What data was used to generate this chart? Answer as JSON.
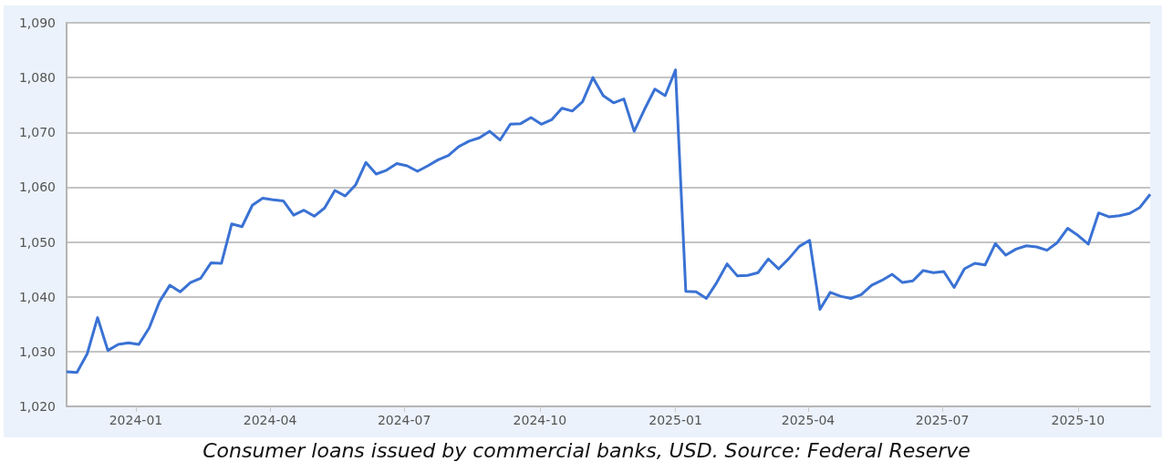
{
  "chart_data": {
    "type": "line",
    "x": [
      "2023-11-15",
      "2023-11-22",
      "2023-11-29",
      "2023-12-06",
      "2023-12-13",
      "2023-12-20",
      "2023-12-27",
      "2024-01-03",
      "2024-01-10",
      "2024-01-17",
      "2024-01-24",
      "2024-01-31",
      "2024-02-07",
      "2024-02-14",
      "2024-02-21",
      "2024-02-28",
      "2024-03-06",
      "2024-03-13",
      "2024-03-20",
      "2024-03-27",
      "2024-04-03",
      "2024-04-10",
      "2024-04-17",
      "2024-04-24",
      "2024-05-01",
      "2024-05-08",
      "2024-05-15",
      "2024-05-22",
      "2024-05-29",
      "2024-06-05",
      "2024-06-12",
      "2024-06-19",
      "2024-06-26",
      "2024-07-03",
      "2024-07-10",
      "2024-07-17",
      "2024-07-24",
      "2024-07-31",
      "2024-08-07",
      "2024-08-14",
      "2024-08-21",
      "2024-08-28",
      "2024-09-04",
      "2024-09-11",
      "2024-09-18",
      "2024-09-25",
      "2024-10-02",
      "2024-10-09",
      "2024-10-16",
      "2024-10-23",
      "2024-10-30",
      "2024-11-06",
      "2024-11-13",
      "2024-11-20",
      "2024-11-27",
      "2024-12-04",
      "2024-12-11",
      "2024-12-18",
      "2024-12-25",
      "2025-01-01",
      "2025-01-08",
      "2025-01-15",
      "2025-01-22",
      "2025-01-29",
      "2025-02-05",
      "2025-02-12",
      "2025-02-19",
      "2025-02-26",
      "2025-03-05",
      "2025-03-12",
      "2025-03-19",
      "2025-03-26",
      "2025-04-02",
      "2025-04-09",
      "2025-04-16",
      "2025-04-23",
      "2025-04-30",
      "2025-05-07",
      "2025-05-14",
      "2025-05-21",
      "2025-05-28",
      "2025-06-04",
      "2025-06-11",
      "2025-06-18",
      "2025-06-25",
      "2025-07-02",
      "2025-07-09",
      "2025-07-16",
      "2025-07-23",
      "2025-07-30",
      "2025-08-06",
      "2025-08-13",
      "2025-08-20",
      "2025-08-27",
      "2025-09-03",
      "2025-09-10",
      "2025-09-17",
      "2025-09-24",
      "2025-10-01",
      "2025-10-08",
      "2025-10-15",
      "2025-10-22",
      "2025-10-29",
      "2025-11-05",
      "2025-11-12",
      "2025-11-19"
    ],
    "series": [
      {
        "color": "#3a72d4",
        "values": [
          1026.3,
          1026.2,
          1029.6,
          1036.2,
          1030.2,
          1031.3,
          1031.6,
          1031.3,
          1034.3,
          1039.1,
          1042.1,
          1040.9,
          1042.6,
          1043.4,
          1046.2,
          1046.1,
          1053.3,
          1052.8,
          1056.7,
          1058.0,
          1057.7,
          1057.5,
          1054.9,
          1055.8,
          1054.7,
          1056.2,
          1059.4,
          1058.4,
          1060.4,
          1064.5,
          1062.4,
          1063.1,
          1064.3,
          1063.9,
          1062.9,
          1063.9,
          1065.0,
          1065.8,
          1067.4,
          1068.4,
          1069.0,
          1070.2,
          1068.6,
          1071.5,
          1071.6,
          1072.7,
          1071.5,
          1072.3,
          1074.4,
          1073.9,
          1075.6,
          1080.0,
          1076.7,
          1075.4,
          1076.1,
          1070.2,
          1074.2,
          1077.9,
          1076.7,
          1081.4,
          1041.0,
          1040.9,
          1039.7,
          1042.6,
          1046.0,
          1043.8,
          1043.9,
          1044.4,
          1046.9,
          1045.1,
          1047.0,
          1049.2,
          1050.3,
          1037.7,
          1040.8,
          1040.1,
          1039.7,
          1040.4,
          1042.1,
          1043.0,
          1044.1,
          1042.6,
          1042.9,
          1044.8,
          1044.4,
          1044.6,
          1041.7,
          1045.1,
          1046.1,
          1045.8,
          1049.7,
          1047.6,
          1048.7,
          1049.3,
          1049.1,
          1048.5,
          1049.9,
          1052.5,
          1051.2,
          1049.6,
          1055.3,
          1054.6,
          1054.8,
          1055.2,
          1056.3,
          1058.7
        ]
      }
    ],
    "xlim": [
      "2023-11-15",
      "2025-11-19"
    ],
    "xticks": [
      "2024-01",
      "2024-04",
      "2024-07",
      "2024-10",
      "2025-01",
      "2025-04",
      "2025-07",
      "2025-10"
    ],
    "ylim": [
      1020,
      1090
    ],
    "yticks": [
      {
        "value": 1020,
        "label": "1,020"
      },
      {
        "value": 1030,
        "label": "1,030"
      },
      {
        "value": 1040,
        "label": "1,040"
      },
      {
        "value": 1050,
        "label": "1,050"
      },
      {
        "value": 1060,
        "label": "1,060"
      },
      {
        "value": 1070,
        "label": "1,070"
      },
      {
        "value": 1080,
        "label": "1,080"
      },
      {
        "value": 1090,
        "label": "1,090"
      }
    ],
    "grid": "y",
    "marker": "none",
    "line_style": "solid",
    "annotations": [
      "Consumer loans issued by commercial banks, USD. Source: Federal Reserve"
    ]
  }
}
